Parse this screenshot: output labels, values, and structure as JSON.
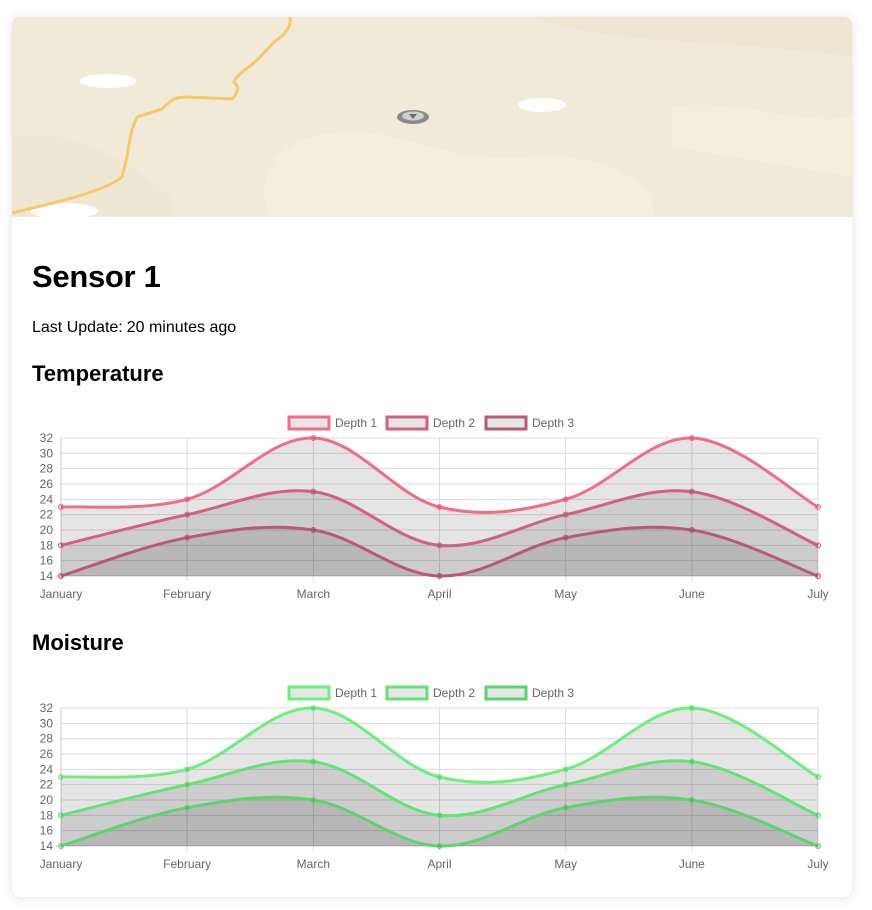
{
  "sensor": {
    "title": "Sensor 1",
    "last_update_label": "Last Update:",
    "last_update_value": "20 minutes ago"
  },
  "charts": [
    {
      "section_title": "Temperature",
      "colors": [
        "#f06d85",
        "#d0617f",
        "#b85a77"
      ],
      "chart_data": {
        "type": "area",
        "categories": [
          "January",
          "February",
          "March",
          "April",
          "May",
          "June",
          "July"
        ],
        "series": [
          {
            "name": "Depth 1",
            "values": [
              23,
              24,
              32,
              23,
              24,
              32,
              23
            ]
          },
          {
            "name": "Depth 2",
            "values": [
              18,
              22,
              25,
              18,
              22,
              25,
              18
            ]
          },
          {
            "name": "Depth 3",
            "values": [
              14,
              19,
              20,
              14,
              19,
              20,
              14
            ]
          }
        ],
        "ylim": [
          14,
          32
        ],
        "yticks": [
          14,
          16,
          18,
          20,
          22,
          24,
          26,
          28,
          30,
          32
        ],
        "grid": true,
        "legend": "top-center"
      }
    },
    {
      "section_title": "Moisture",
      "colors": [
        "#6cf07d",
        "#62e474",
        "#5cd46e"
      ],
      "chart_data": {
        "type": "area",
        "categories": [
          "January",
          "February",
          "March",
          "April",
          "May",
          "June",
          "July"
        ],
        "series": [
          {
            "name": "Depth 1",
            "values": [
              23,
              24,
              32,
              23,
              24,
              32,
              23
            ]
          },
          {
            "name": "Depth 2",
            "values": [
              18,
              22,
              25,
              18,
              22,
              25,
              18
            ]
          },
          {
            "name": "Depth 3",
            "values": [
              14,
              19,
              20,
              14,
              19,
              20,
              14
            ]
          }
        ],
        "ylim": [
          14,
          32
        ],
        "yticks": [
          14,
          16,
          18,
          20,
          22,
          24,
          26,
          28,
          30,
          32
        ],
        "grid": true,
        "legend": "top-center"
      }
    }
  ],
  "map": {
    "marker_icon": "map-pin-icon",
    "road_color": "#f5c86a",
    "land_color": "#f2ead8"
  }
}
